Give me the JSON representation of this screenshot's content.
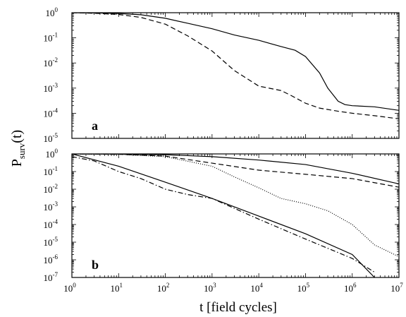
{
  "figure": {
    "ylabel_main": "P",
    "ylabel_sub": "surv",
    "ylabel_arg": "(t)",
    "xlabel": "t [field cycles]"
  },
  "chart_data": [
    {
      "type": "line",
      "panel_label": "a",
      "xscale": "log",
      "yscale": "log",
      "xlim": [
        1,
        10000000
      ],
      "ylim": [
        1e-05,
        1
      ],
      "x_ticks": [
        1,
        10,
        100,
        1000,
        10000,
        100000,
        1000000,
        10000000
      ],
      "y_ticks": [
        1e-05,
        0.0001,
        0.001,
        0.01,
        0.1,
        1
      ],
      "y_tick_labels": [
        {
          "base": "10",
          "exp": "-5"
        },
        {
          "base": "10",
          "exp": "-4"
        },
        {
          "base": "10",
          "exp": "-3"
        },
        {
          "base": "10",
          "exp": "-2"
        },
        {
          "base": "10",
          "exp": "-1"
        },
        {
          "base": "10",
          "exp": "0"
        }
      ],
      "legend": "none",
      "series": [
        {
          "style": "solid",
          "x": [
            1,
            3,
            10,
            30,
            100,
            300,
            1000,
            3000,
            10000,
            30000,
            60000,
            100000,
            200000,
            300000,
            500000,
            700000,
            1000000,
            3000000,
            10000000
          ],
          "y": [
            1.0,
            0.98,
            0.93,
            0.83,
            0.6,
            0.38,
            0.23,
            0.13,
            0.08,
            0.045,
            0.032,
            0.018,
            0.004,
            0.001,
            0.0003,
            0.00022,
            0.0002,
            0.00018,
            0.00013
          ]
        },
        {
          "style": "dashed",
          "x": [
            1,
            3,
            10,
            30,
            100,
            300,
            1000,
            3000,
            10000,
            30000,
            50000,
            100000,
            200000,
            500000,
            1000000,
            3000000,
            10000000
          ],
          "y": [
            1.0,
            0.95,
            0.85,
            0.65,
            0.35,
            0.12,
            0.03,
            0.005,
            0.0012,
            0.0008,
            0.0005,
            0.00025,
            0.00016,
            0.00012,
            0.0001,
            8e-05,
            6e-05
          ]
        }
      ]
    },
    {
      "type": "line",
      "panel_label": "b",
      "xscale": "log",
      "yscale": "log",
      "xlim": [
        1,
        10000000
      ],
      "ylim": [
        1e-07,
        1
      ],
      "x_ticks": [
        1,
        10,
        100,
        1000,
        10000,
        100000,
        1000000,
        10000000
      ],
      "x_tick_labels": [
        {
          "base": "10",
          "exp": "0"
        },
        {
          "base": "10",
          "exp": "1"
        },
        {
          "base": "10",
          "exp": "2"
        },
        {
          "base": "10",
          "exp": "3"
        },
        {
          "base": "10",
          "exp": "4"
        },
        {
          "base": "10",
          "exp": "5"
        },
        {
          "base": "10",
          "exp": "6"
        },
        {
          "base": "10",
          "exp": "7"
        }
      ],
      "y_ticks": [
        1e-07,
        1e-06,
        1e-05,
        0.0001,
        0.001,
        0.01,
        0.1,
        1
      ],
      "y_tick_labels": [
        {
          "base": "10",
          "exp": "-7"
        },
        {
          "base": "10",
          "exp": "-6"
        },
        {
          "base": "10",
          "exp": "-5"
        },
        {
          "base": "10",
          "exp": "-4"
        },
        {
          "base": "10",
          "exp": "-3"
        },
        {
          "base": "10",
          "exp": "-2"
        },
        {
          "base": "10",
          "exp": "-1"
        },
        {
          "base": "10",
          "exp": "0"
        }
      ],
      "legend": "none",
      "series": [
        {
          "style": "solid",
          "x": [
            1,
            10,
            100,
            1000,
            10000,
            100000,
            1000000,
            10000000
          ],
          "y": [
            1.0,
            0.98,
            0.9,
            0.7,
            0.45,
            0.25,
            0.08,
            0.02
          ]
        },
        {
          "style": "dashed",
          "x": [
            1,
            10,
            100,
            1000,
            10000,
            100000,
            1000000,
            10000000
          ],
          "y": [
            1.0,
            0.95,
            0.75,
            0.3,
            0.12,
            0.07,
            0.04,
            0.013
          ]
        },
        {
          "style": "dotted",
          "x": [
            1,
            10,
            100,
            1000,
            3000,
            10000,
            30000,
            100000,
            300000,
            1000000,
            3000000,
            10000000
          ],
          "y": [
            1.0,
            0.95,
            0.7,
            0.2,
            0.05,
            0.012,
            0.003,
            0.0015,
            0.0006,
            0.0001,
            7e-06,
            1.5e-06
          ]
        },
        {
          "style": "solid",
          "x": [
            1,
            10,
            100,
            1000,
            10000,
            100000,
            1000000,
            3000000
          ],
          "y": [
            1.0,
            0.2,
            0.025,
            0.003,
            0.0003,
            3e-05,
            2e-06,
            1e-07
          ]
        },
        {
          "style": "dashdot",
          "x": [
            1,
            3,
            10,
            30,
            100,
            300,
            1000,
            10000,
            100000,
            1000000,
            3000000
          ],
          "y": [
            0.7,
            0.4,
            0.1,
            0.04,
            0.01,
            0.005,
            0.003,
            0.0002,
            1.5e-05,
            1.2e-06,
            2e-07
          ]
        }
      ]
    }
  ]
}
